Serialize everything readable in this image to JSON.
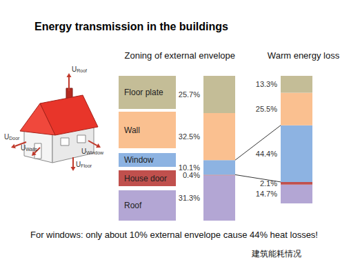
{
  "title": "Energy transmission in the buildings",
  "house_labels": {
    "symbol": "U",
    "subscripts": [
      "Roof",
      "Door",
      "Walls",
      "Window",
      "Floor"
    ]
  },
  "footer": "For windows: only about 10% external envelope cause 44% heat losses!",
  "caption": "建筑能耗情况",
  "chart_data": {
    "type": "bar",
    "stacked": true,
    "data_labels": true,
    "tick_labels": false,
    "grid": false,
    "legend": "left",
    "categories": [
      "Zoning of external envelope",
      "Warm energy loss"
    ],
    "ylim": [
      0,
      100
    ],
    "series": [
      {
        "name": "Roof",
        "color": "#b3a6d4",
        "values": [
          31.3,
          14.7
        ],
        "value_labels": [
          "31.3%",
          "14.7%"
        ]
      },
      {
        "name": "House door",
        "color": "#c0504d",
        "values": [
          0.4,
          2.1
        ],
        "value_labels": [
          "0.4%",
          "2.1%"
        ]
      },
      {
        "name": "Window",
        "color": "#8db3e2",
        "values": [
          10.1,
          44.4
        ],
        "value_labels": [
          "10.1%",
          "44.4%"
        ]
      },
      {
        "name": "Wall",
        "color": "#fac090",
        "values": [
          32.5,
          25.5
        ],
        "value_labels": [
          "32.5%",
          "25.5%"
        ]
      },
      {
        "name": "Floor plate",
        "color": "#c4bd97",
        "values": [
          25.7,
          13.3
        ],
        "value_labels": [
          "25.7%",
          "13.3%"
        ]
      }
    ]
  }
}
